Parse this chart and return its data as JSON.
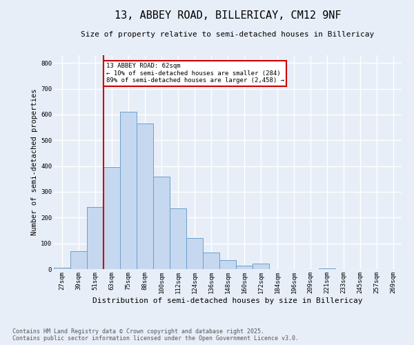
{
  "title_line1": "13, ABBEY ROAD, BILLERICAY, CM12 9NF",
  "title_line2": "Size of property relative to semi-detached houses in Billericay",
  "xlabel": "Distribution of semi-detached houses by size in Billericay",
  "ylabel": "Number of semi-detached properties",
  "categories": [
    "27sqm",
    "39sqm",
    "51sqm",
    "63sqm",
    "75sqm",
    "88sqm",
    "100sqm",
    "112sqm",
    "124sqm",
    "136sqm",
    "148sqm",
    "160sqm",
    "172sqm",
    "184sqm",
    "196sqm",
    "209sqm",
    "221sqm",
    "233sqm",
    "245sqm",
    "257sqm",
    "269sqm"
  ],
  "values": [
    5,
    70,
    240,
    395,
    610,
    565,
    360,
    235,
    120,
    65,
    35,
    13,
    22,
    0,
    0,
    0,
    3,
    0,
    0,
    0,
    0
  ],
  "bar_color": "#c5d8f0",
  "bar_edge_color": "#6aa0cc",
  "marker_col": 3,
  "marker_color": "#cc0000",
  "annotation_text": "13 ABBEY ROAD: 62sqm\n← 10% of semi-detached houses are smaller (284)\n89% of semi-detached houses are larger (2,458) →",
  "annotation_box_color": "#ffffff",
  "annotation_edge_color": "#cc0000",
  "footer_text": "Contains HM Land Registry data © Crown copyright and database right 2025.\nContains public sector information licensed under the Open Government Licence v3.0.",
  "ylim": [
    0,
    830
  ],
  "yticks": [
    0,
    100,
    200,
    300,
    400,
    500,
    600,
    700,
    800
  ],
  "background_color": "#e8eef8",
  "grid_color": "#ffffff",
  "title_fontsize": 11,
  "subtitle_fontsize": 8,
  "xlabel_fontsize": 8,
  "ylabel_fontsize": 7.5,
  "tick_fontsize": 6.5,
  "footer_fontsize": 6
}
